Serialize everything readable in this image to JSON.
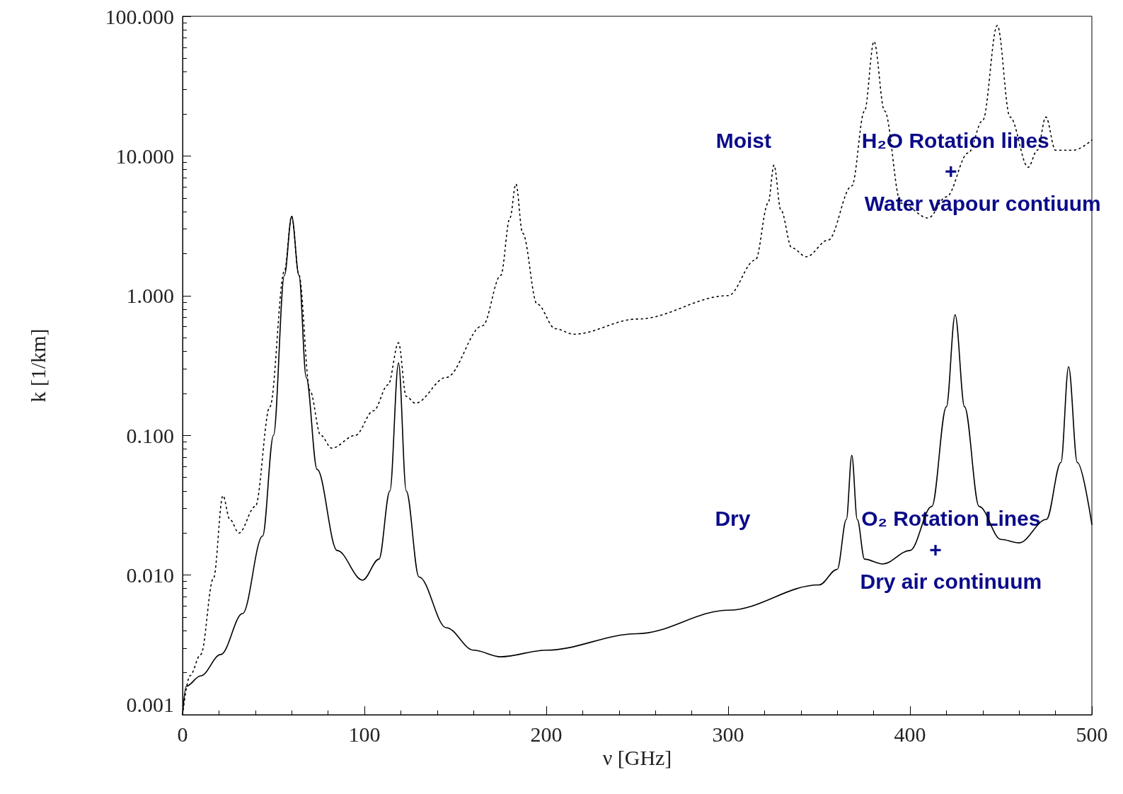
{
  "chart_data": {
    "type": "line",
    "xlabel": "ν [GHz]",
    "ylabel": "k [1/km]",
    "log": "y",
    "grid": false,
    "marker": "none",
    "xlim": [
      0,
      500
    ],
    "xticks": [
      0,
      100,
      200,
      300,
      400,
      500
    ],
    "ylim": [
      0.001,
      100
    ],
    "yticks": [
      {
        "value": 0.001,
        "label": "0.001"
      },
      {
        "value": 0.01,
        "label": "0.010"
      },
      {
        "value": 0.1,
        "label": "0.100"
      },
      {
        "value": 1,
        "label": "1.000"
      },
      {
        "value": 10,
        "label": "10.000"
      },
      {
        "value": 100,
        "label": "100.000"
      }
    ],
    "series": [
      {
        "color": "#000000",
        "line_style": "solid",
        "x": [
          0,
          2,
          10,
          21,
          33,
          44,
          50,
          56,
          60,
          64,
          68,
          74,
          85,
          99,
          108,
          114,
          118.75,
          123,
          130,
          145,
          160,
          175,
          200,
          250,
          300,
          350,
          360,
          365,
          368,
          371,
          375,
          385,
          400,
          412,
          420,
          424.8,
          430,
          438,
          450,
          460,
          475,
          483,
          487.2,
          492,
          500
        ],
        "values": [
          0.001,
          0.0016,
          0.0019,
          0.0027,
          0.0053,
          0.019,
          0.1,
          1.4,
          3.7,
          1.4,
          0.26,
          0.057,
          0.015,
          0.0092,
          0.013,
          0.04,
          0.33,
          0.04,
          0.0097,
          0.0042,
          0.0029,
          0.0026,
          0.0029,
          0.0038,
          0.0056,
          0.0085,
          0.011,
          0.025,
          0.072,
          0.025,
          0.013,
          0.012,
          0.015,
          0.031,
          0.16,
          0.73,
          0.16,
          0.031,
          0.018,
          0.017,
          0.025,
          0.064,
          0.31,
          0.064,
          0.023
        ]
      },
      {
        "color": "#000000",
        "line_style": "dotted",
        "x": [
          0,
          4,
          10,
          17,
          22.2,
          26,
          31,
          40,
          48,
          56,
          60,
          64,
          70,
          76,
          82,
          95,
          105,
          113,
          118.75,
          123,
          128,
          145,
          165,
          175,
          180,
          183.3,
          187,
          195,
          205,
          215,
          250,
          300,
          315,
          322,
          325.2,
          329,
          335,
          343,
          355,
          368,
          375,
          380.2,
          386,
          395,
          410,
          420,
          432,
          440,
          448,
          455,
          465,
          470,
          474.7,
          480,
          490,
          500
        ],
        "values": [
          0.001,
          0.0019,
          0.0027,
          0.0095,
          0.037,
          0.025,
          0.02,
          0.031,
          0.16,
          1.5,
          3.7,
          1.4,
          0.21,
          0.1,
          0.081,
          0.1,
          0.15,
          0.23,
          0.46,
          0.19,
          0.17,
          0.26,
          0.61,
          1.4,
          3.6,
          6.3,
          2.8,
          0.87,
          0.58,
          0.53,
          0.68,
          1.0,
          1.8,
          4.6,
          8.6,
          4.1,
          2.2,
          1.9,
          2.5,
          6.1,
          21,
          66,
          21,
          4.6,
          3.6,
          5.1,
          10.5,
          18,
          86,
          19,
          8.3,
          11,
          19,
          11,
          11,
          13
        ]
      }
    ],
    "annotations": [
      "Moist",
      "H₂O Rotation lines",
      "+",
      "Water vapour contiuum",
      "Dry",
      "O₂ Rotation Lines",
      "+",
      "Dry air continuum"
    ]
  }
}
